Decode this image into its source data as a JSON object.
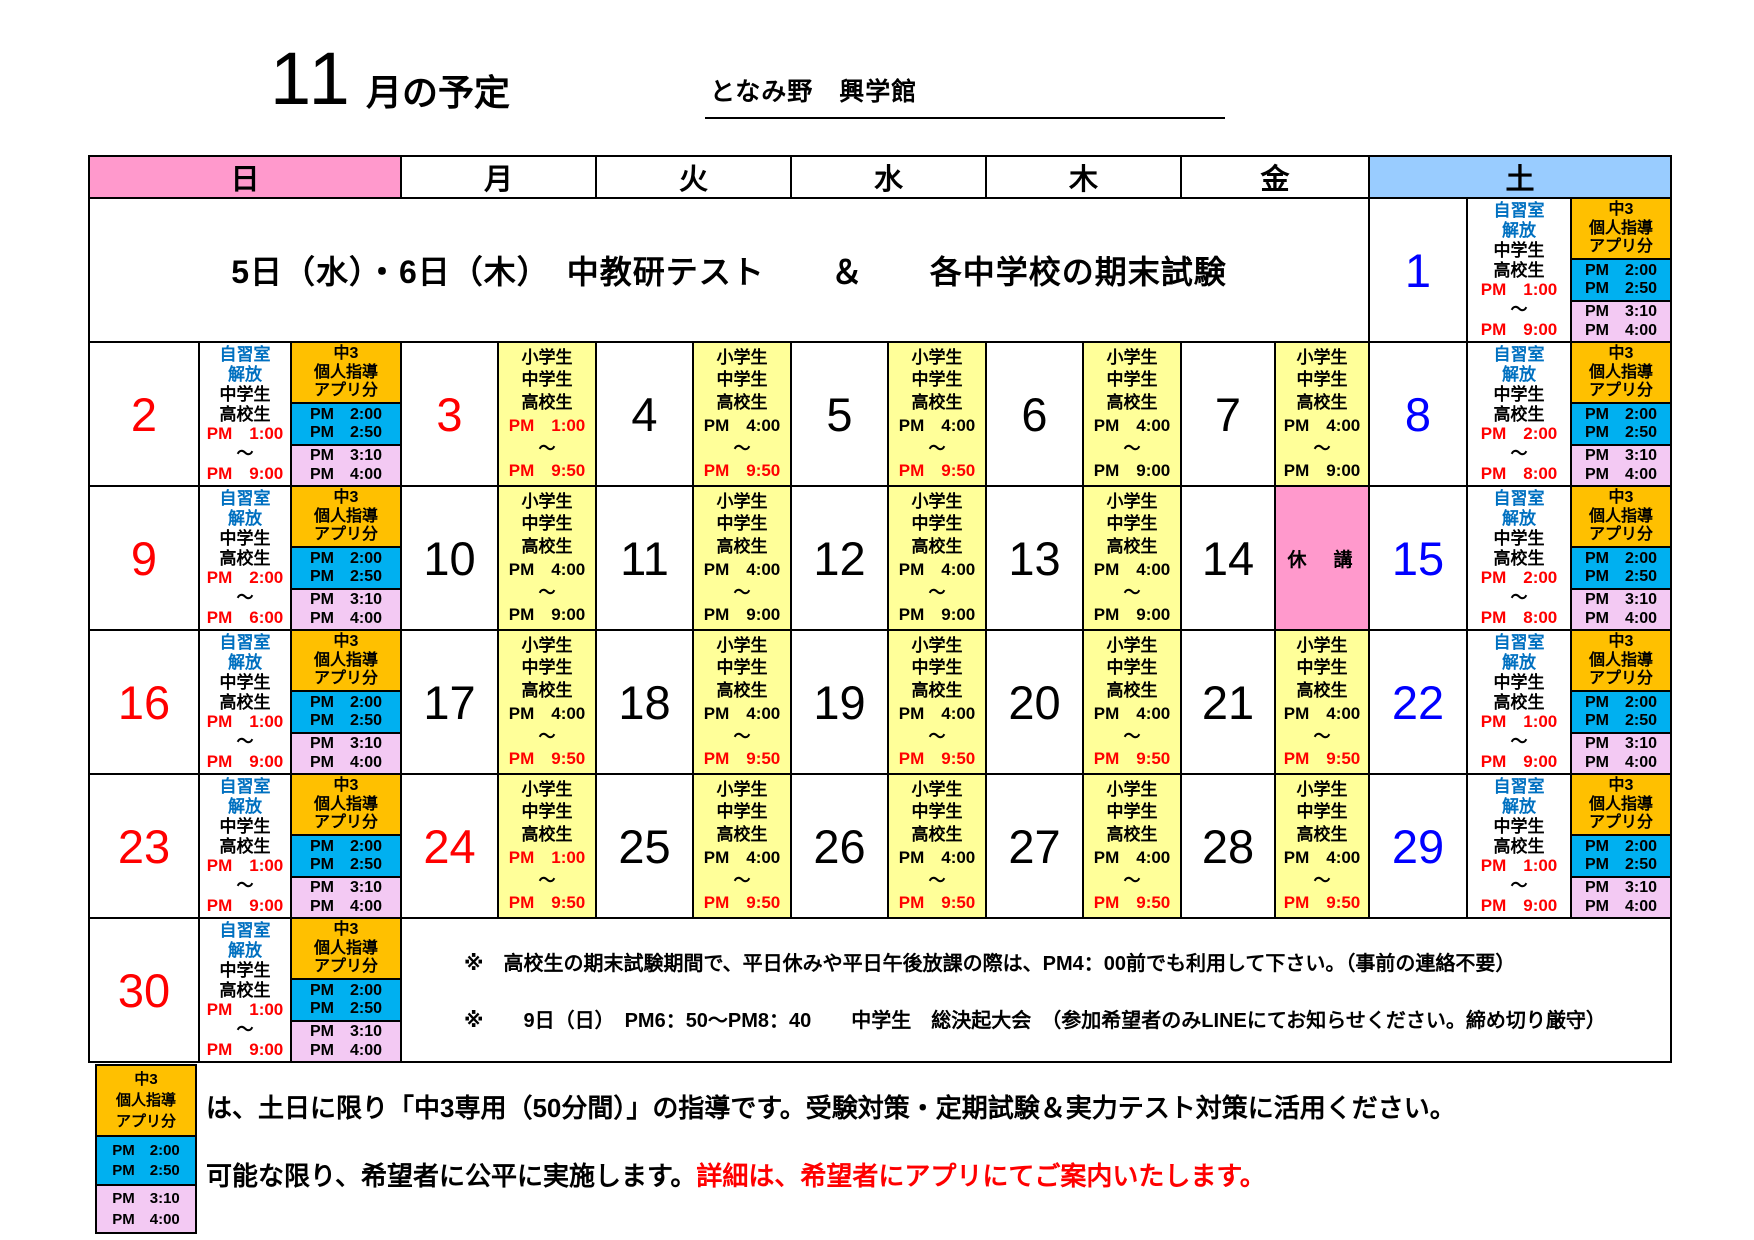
{
  "page": {
    "title_number": "11",
    "title_suffix": "月の予定",
    "school_name": "となみ野　興学館"
  },
  "colors": {
    "sunday_header": "#FF99CC",
    "saturday_header": "#99CCFF",
    "lesson_bg": "#FFFF99",
    "chu3_header_bg": "#FFC000",
    "slot1_bg": "#00B0F0",
    "slot2_bg": "#F3C9F3",
    "closed_bg": "#FF99CC",
    "red": "#FF0000",
    "saturday_number": "#0000FF",
    "selfstudy_blue": "#0070C0"
  },
  "weekday_headers": [
    "日",
    "月",
    "火",
    "水",
    "木",
    "金",
    "土"
  ],
  "tilde": "～",
  "closed_label": "休　講",
  "self_study": {
    "labels": [
      "自習室",
      "解放",
      "中学生",
      "高校生"
    ]
  },
  "lesson": {
    "labels": [
      "小学生",
      "中学生",
      "高校生"
    ]
  },
  "chu3": {
    "header": [
      "中3",
      "個人指導",
      "アプリ分"
    ],
    "slot1": [
      "PM　2:00",
      "PM　2:50"
    ],
    "slot2": [
      "PM　3:10",
      "PM　4:00"
    ]
  },
  "banner": "5日（水）・6日（木）　中教研テスト　　＆　　各中学校の期末試験",
  "notes": [
    "※　高校生の期末試験期間で、平日休みや平日午後放課の際は、PM4：00前でも利用して下さい。（事前の連絡不要）",
    "※　　9日（日）　PM6：50～PM8：40　　中学生　総決起大会　（参加希望者のみLINEにてお知らせください。締め切り厳守）"
  ],
  "footer": {
    "line1": "は、土日に限り「中3専用（50分間）」の指導です。受験対策・定期試験＆実力テスト対策に活用ください。",
    "line2_black": "可能な限り、希望者に公平に実施します。",
    "line2_red": "詳細は、希望者にアプリにてご案内いたします。"
  },
  "weeks": [
    {
      "has_banner": true,
      "days": [
        null,
        null,
        null,
        null,
        null,
        null,
        {
          "num": "1",
          "num_color": "blue",
          "type": "selfstudy",
          "start": "PM　1:00",
          "end": "PM　9:00"
        }
      ]
    },
    {
      "days": [
        {
          "num": "2",
          "num_color": "red",
          "type": "selfstudy",
          "start": "PM　1:00",
          "end": "PM　9:00"
        },
        {
          "num": "3",
          "num_color": "red",
          "type": "lesson",
          "start": "PM　1:00",
          "start_red": true,
          "end": "PM　9:50",
          "end_red": true
        },
        {
          "num": "4",
          "num_color": "black",
          "type": "lesson",
          "start": "PM　4:00",
          "start_red": false,
          "end": "PM　9:50",
          "end_red": true
        },
        {
          "num": "5",
          "num_color": "black",
          "type": "lesson",
          "start": "PM　4:00",
          "start_red": false,
          "end": "PM　9:50",
          "end_red": true
        },
        {
          "num": "6",
          "num_color": "black",
          "type": "lesson",
          "start": "PM　4:00",
          "start_red": false,
          "end": "PM　9:00",
          "end_red": false
        },
        {
          "num": "7",
          "num_color": "black",
          "type": "lesson",
          "start": "PM　4:00",
          "start_red": false,
          "end": "PM　9:00",
          "end_red": false
        },
        {
          "num": "8",
          "num_color": "blue",
          "type": "selfstudy",
          "start": "PM　2:00",
          "end": "PM　8:00"
        }
      ]
    },
    {
      "days": [
        {
          "num": "9",
          "num_color": "red",
          "type": "selfstudy",
          "start": "PM　2:00",
          "end": "PM　6:00"
        },
        {
          "num": "10",
          "num_color": "black",
          "type": "lesson",
          "start": "PM　4:00",
          "start_red": false,
          "end": "PM　9:00",
          "end_red": false
        },
        {
          "num": "11",
          "num_color": "black",
          "type": "lesson",
          "start": "PM　4:00",
          "start_red": false,
          "end": "PM　9:00",
          "end_red": false
        },
        {
          "num": "12",
          "num_color": "black",
          "type": "lesson",
          "start": "PM　4:00",
          "start_red": false,
          "end": "PM　9:00",
          "end_red": false
        },
        {
          "num": "13",
          "num_color": "black",
          "type": "lesson",
          "start": "PM　4:00",
          "start_red": false,
          "end": "PM　9:00",
          "end_red": false
        },
        {
          "num": "14",
          "num_color": "black",
          "type": "closed"
        },
        {
          "num": "15",
          "num_color": "blue",
          "type": "selfstudy",
          "start": "PM　2:00",
          "end": "PM　8:00"
        }
      ]
    },
    {
      "days": [
        {
          "num": "16",
          "num_color": "red",
          "type": "selfstudy",
          "start": "PM　1:00",
          "end": "PM　9:00"
        },
        {
          "num": "17",
          "num_color": "black",
          "type": "lesson",
          "start": "PM　4:00",
          "start_red": false,
          "end": "PM　9:50",
          "end_red": true
        },
        {
          "num": "18",
          "num_color": "black",
          "type": "lesson",
          "start": "PM　4:00",
          "start_red": false,
          "end": "PM　9:50",
          "end_red": true
        },
        {
          "num": "19",
          "num_color": "black",
          "type": "lesson",
          "start": "PM　4:00",
          "start_red": false,
          "end": "PM　9:50",
          "end_red": true
        },
        {
          "num": "20",
          "num_color": "black",
          "type": "lesson",
          "start": "PM　4:00",
          "start_red": false,
          "end": "PM　9:50",
          "end_red": true
        },
        {
          "num": "21",
          "num_color": "black",
          "type": "lesson",
          "start": "PM　4:00",
          "start_red": false,
          "end": "PM　9:50",
          "end_red": true
        },
        {
          "num": "22",
          "num_color": "blue",
          "type": "selfstudy",
          "start": "PM　1:00",
          "end": "PM　9:00"
        }
      ]
    },
    {
      "days": [
        {
          "num": "23",
          "num_color": "red",
          "type": "selfstudy",
          "start": "PM　1:00",
          "end": "PM　9:00"
        },
        {
          "num": "24",
          "num_color": "red",
          "type": "lesson",
          "start": "PM　1:00",
          "start_red": true,
          "end": "PM　9:50",
          "end_red": true
        },
        {
          "num": "25",
          "num_color": "black",
          "type": "lesson",
          "start": "PM　4:00",
          "start_red": false,
          "end": "PM　9:50",
          "end_red": true
        },
        {
          "num": "26",
          "num_color": "black",
          "type": "lesson",
          "start": "PM　4:00",
          "start_red": false,
          "end": "PM　9:50",
          "end_red": true
        },
        {
          "num": "27",
          "num_color": "black",
          "type": "lesson",
          "start": "PM　4:00",
          "start_red": false,
          "end": "PM　9:50",
          "end_red": true
        },
        {
          "num": "28",
          "num_color": "black",
          "type": "lesson",
          "start": "PM　4:00",
          "start_red": false,
          "end": "PM　9:50",
          "end_red": true
        },
        {
          "num": "29",
          "num_color": "blue",
          "type": "selfstudy",
          "start": "PM　1:00",
          "end": "PM　9:00"
        }
      ]
    },
    {
      "has_notes": true,
      "days": [
        {
          "num": "30",
          "num_color": "red",
          "type": "selfstudy",
          "start": "PM　1:00",
          "end": "PM　9:00"
        },
        null,
        null,
        null,
        null,
        null,
        null
      ]
    }
  ]
}
